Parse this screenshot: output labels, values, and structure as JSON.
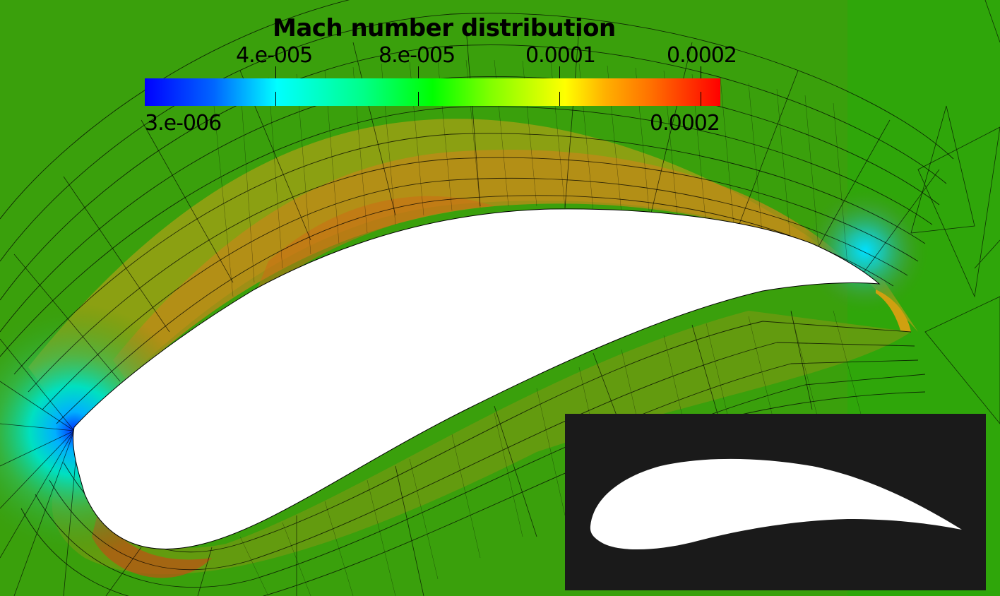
{
  "scene": {
    "colorbar": {
      "title": "Mach number distribution",
      "top_ticks": [
        "4.e-005",
        "8.e-005",
        "0.0001",
        "0.0002"
      ],
      "min_label": "3.e-006",
      "max_label": "0.0002",
      "colors": [
        "#0000ff",
        "#00ffff",
        "#00ff00",
        "#ffff00",
        "#ff0000"
      ]
    },
    "field_colors": {
      "far_field": "#3a9a0a",
      "near_suction_side": "#b87a18",
      "mesh_lines": "#000000",
      "airfoil": "#ffffff",
      "inset_background": "#1a1a1a"
    }
  }
}
